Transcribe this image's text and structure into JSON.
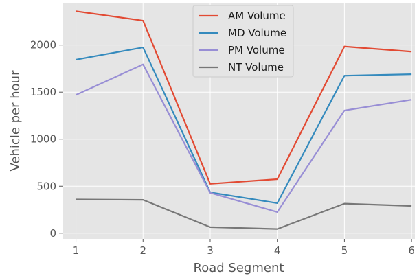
{
  "chart_data": {
    "type": "line",
    "title": "",
    "xlabel": "Road Segment",
    "ylabel": "Vehicle per hour",
    "x": [
      1,
      2,
      3,
      4,
      5,
      6
    ],
    "xticks": [
      "1",
      "2",
      "3",
      "4",
      "5",
      "6"
    ],
    "yticks": [
      "0",
      "500",
      "1000",
      "1500",
      "2000"
    ],
    "xlim": [
      0.8,
      6.05
    ],
    "ylim": [
      -60,
      2450
    ],
    "grid": true,
    "legend_position": "top-center",
    "series": [
      {
        "name": "AM Volume",
        "color": "#E24A33",
        "values": [
          2360,
          2260,
          525,
          575,
          1985,
          1930
        ]
      },
      {
        "name": "MD Volume",
        "color": "#348ABD",
        "values": [
          1845,
          1975,
          435,
          320,
          1675,
          1690
        ]
      },
      {
        "name": "PM Volume",
        "color": "#988ED5",
        "values": [
          1470,
          1795,
          430,
          225,
          1305,
          1420
        ]
      },
      {
        "name": "NT Volume",
        "color": "#777777",
        "values": [
          360,
          355,
          65,
          45,
          315,
          290
        ]
      }
    ]
  }
}
